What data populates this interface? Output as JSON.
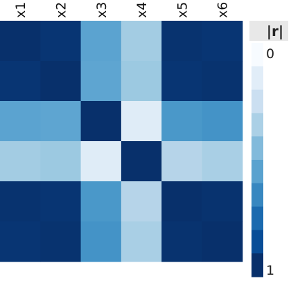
{
  "chart_data": {
    "type": "heatmap",
    "x_categories": [
      "x1",
      "x2",
      "x3",
      "x4",
      "x5",
      "x6"
    ],
    "y_categories": [
      "x1",
      "x2",
      "x3",
      "x4",
      "x5",
      "x6"
    ],
    "values": [
      [
        1.0,
        0.98,
        0.55,
        0.36,
        0.99,
        0.98
      ],
      [
        0.98,
        1.0,
        0.54,
        0.38,
        0.98,
        0.99
      ],
      [
        0.55,
        0.54,
        1.0,
        0.12,
        0.6,
        0.62
      ],
      [
        0.36,
        0.38,
        0.12,
        1.0,
        0.3,
        0.34
      ],
      [
        0.99,
        0.98,
        0.6,
        0.3,
        1.0,
        0.99
      ],
      [
        0.98,
        0.99,
        0.62,
        0.34,
        0.99,
        1.0
      ]
    ],
    "colorbar": {
      "title": "|r|",
      "min_label": "0",
      "max_label": "1",
      "range": [
        0,
        1
      ],
      "steps": 10
    },
    "colors": {
      "low": "#f7fbff",
      "high": "#08306b",
      "palette": [
        "#f7fbff",
        "#deebf7",
        "#c6dbef",
        "#9ecae1",
        "#6baed6",
        "#4292c6",
        "#2171b5",
        "#08519c",
        "#08306b"
      ]
    }
  }
}
